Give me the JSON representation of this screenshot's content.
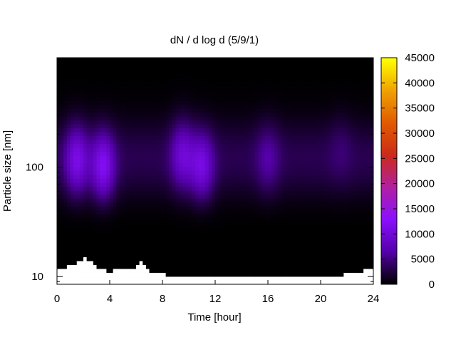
{
  "chart_data": {
    "type": "heatmap",
    "title": "dN / d log d (5/9/1)",
    "xlabel": "Time [hour]",
    "ylabel": "Particle size [nm]",
    "x_range": [
      0,
      24
    ],
    "x_ticks": [
      0,
      4,
      8,
      12,
      16,
      20,
      24
    ],
    "y_scale": "log",
    "y_range": [
      8.5,
      1000
    ],
    "y_ticks": [
      10,
      100
    ],
    "colorbar": {
      "range": [
        0,
        45000
      ],
      "ticks": [
        0,
        5000,
        10000,
        15000,
        20000,
        25000,
        30000,
        35000,
        40000,
        45000
      ],
      "colormap": "gnuplot",
      "colormap_stops": [
        "#000000",
        "#5500aa",
        "#8a10ff",
        "#b020a0",
        "#cc2a1a",
        "#e05a00",
        "#f0a000",
        "#ffff00"
      ]
    },
    "grid": false,
    "background_color": "#000000",
    "missing_color": "#ffffff",
    "data_size_max_nm": 850,
    "peaks": [
      {
        "time_h": 1.5,
        "size_nm": 115,
        "value": 11000
      },
      {
        "time_h": 3.5,
        "size_nm": 100,
        "value": 12000
      },
      {
        "time_h": 9.5,
        "size_nm": 130,
        "value": 9500
      },
      {
        "time_h": 11.0,
        "size_nm": 100,
        "value": 10500
      },
      {
        "time_h": 16.0,
        "size_nm": 120,
        "value": 6500
      },
      {
        "time_h": 21.5,
        "size_nm": 150,
        "value": 4500
      }
    ],
    "lower_cutoff_nm": [
      [
        0,
        11.5
      ],
      [
        1.5,
        13
      ],
      [
        2,
        15
      ],
      [
        2.5,
        14
      ],
      [
        3,
        12
      ],
      [
        4,
        11
      ],
      [
        5,
        12
      ],
      [
        6,
        12
      ],
      [
        6.5,
        14
      ],
      [
        7,
        11
      ],
      [
        8,
        10.5
      ],
      [
        10,
        10
      ],
      [
        12,
        9.8
      ],
      [
        16,
        9.8
      ],
      [
        20,
        10
      ],
      [
        22,
        10.5
      ],
      [
        23,
        11
      ],
      [
        24,
        12
      ]
    ]
  }
}
